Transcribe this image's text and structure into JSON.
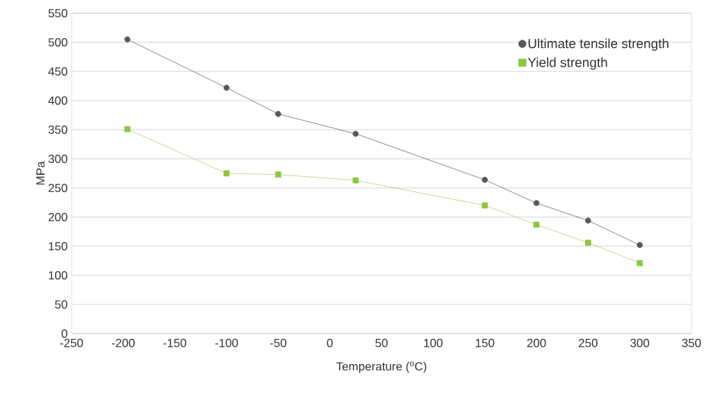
{
  "chart_data": {
    "type": "line",
    "xlabel": "Temperature ($^{o}$C)",
    "ylabel": "MPa",
    "x": [
      -196,
      -100,
      -50,
      25,
      150,
      200,
      250,
      300
    ],
    "series": [
      {
        "name": "Ultimate tensile strength",
        "color": "#58595b",
        "marker": "circle",
        "values": [
          505,
          422,
          377,
          343,
          264,
          224,
          194,
          152
        ]
      },
      {
        "name": "Yield strength",
        "color": "#8dc63f",
        "marker": "square",
        "values": [
          351,
          275,
          273,
          263,
          220,
          187,
          156,
          121
        ]
      }
    ],
    "xlim": [
      -250,
      350
    ],
    "ylim": [
      0,
      550
    ],
    "xticks": [
      -250,
      -200,
      -150,
      -100,
      -50,
      0,
      50,
      100,
      150,
      200,
      250,
      300,
      350
    ],
    "yticks": [
      0,
      50,
      100,
      150,
      200,
      250,
      300,
      350,
      400,
      450,
      500,
      550
    ],
    "grid": "y",
    "legend": "top right"
  }
}
